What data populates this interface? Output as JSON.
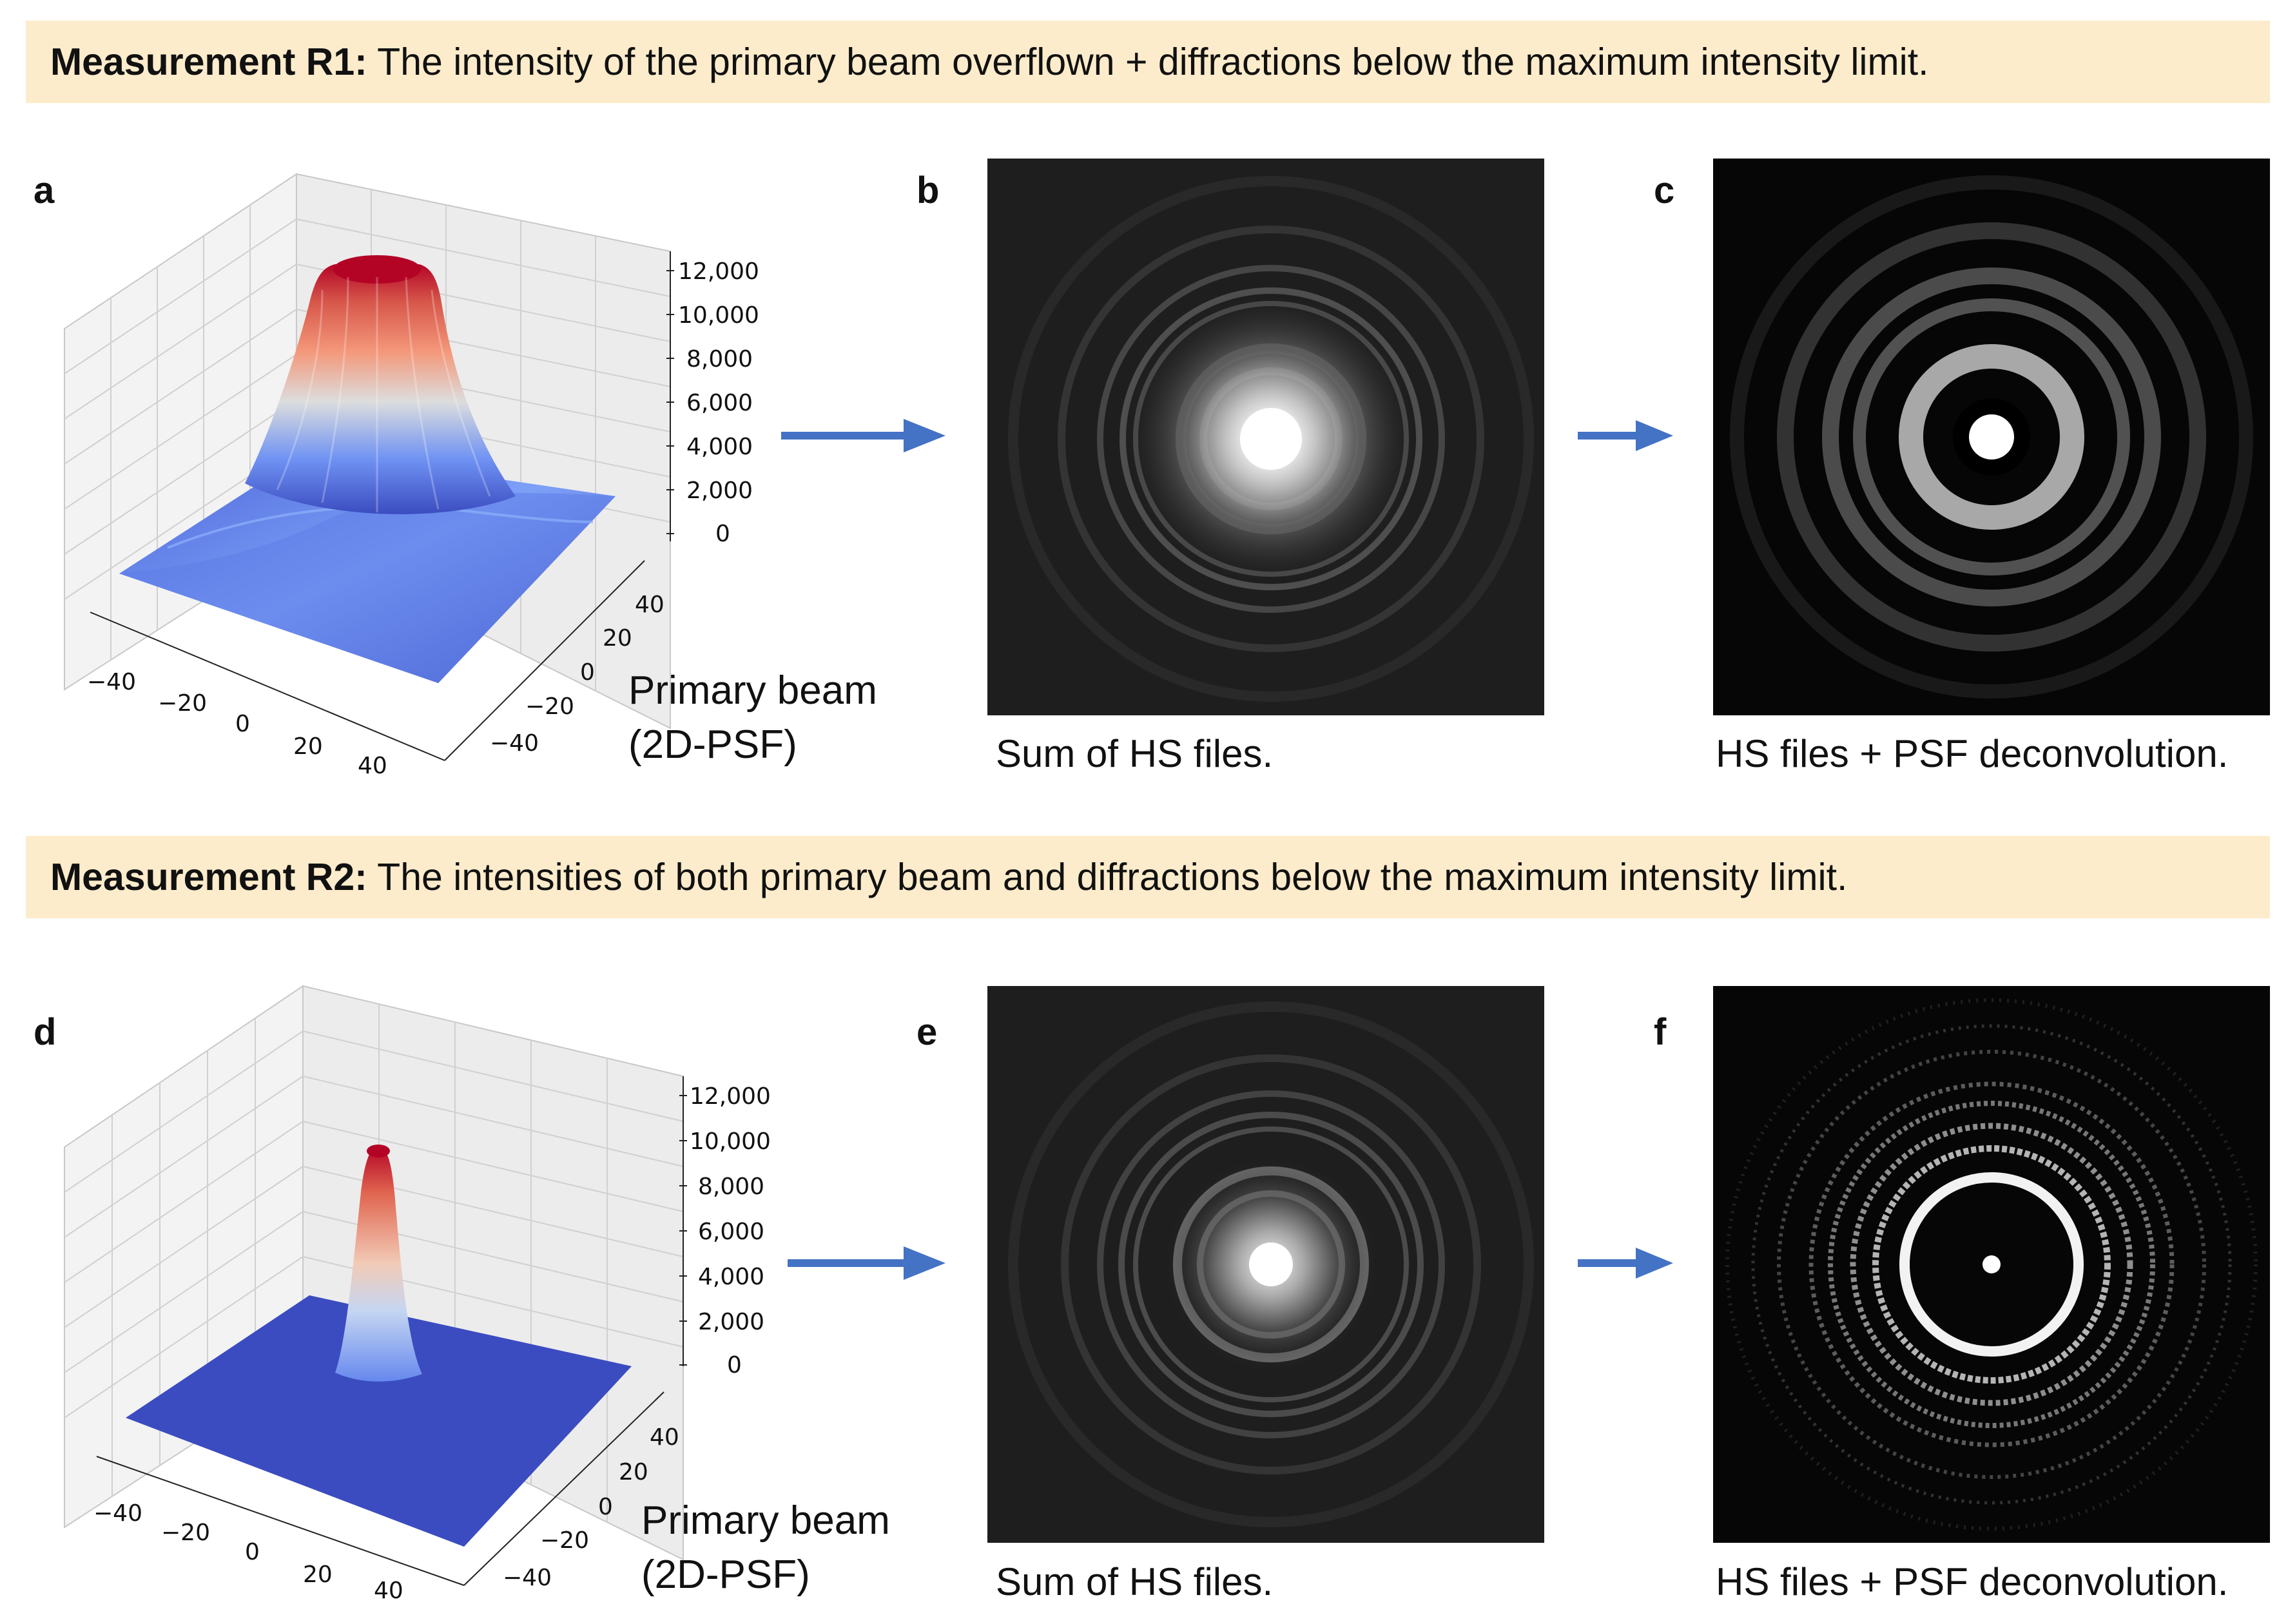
{
  "row1": {
    "banner_label": "Measurement R1:",
    "banner_text": " The intensity of the primary beam overflown + diffractions below the maximum intensity limit.",
    "letters": [
      "a",
      "b",
      "c"
    ],
    "beam_caption_line1": "Primary beam",
    "beam_caption_line2": "(2D-PSF)",
    "caption_b": "Sum of HS files.",
    "caption_c": "HS files + PSF deconvolution.",
    "z_ticks": [
      "12,000",
      "10,000",
      "8,000",
      "6,000",
      "4,000",
      "2,000",
      "0"
    ],
    "x_ticks": [
      "−40",
      "−20",
      "0",
      "20",
      "40"
    ],
    "y_ticks": [
      "40",
      "20",
      "0",
      "−20",
      "−40"
    ]
  },
  "row2": {
    "banner_label": "Measurement R2:",
    "banner_text": " The intensities of both primary beam and diffractions below the maximum intensity limit.",
    "letters": [
      "d",
      "e",
      "f"
    ],
    "beam_caption_line1": "Primary beam",
    "beam_caption_line2": "(2D-PSF)",
    "caption_e": "Sum of HS files.",
    "caption_f": "HS files + PSF deconvolution.",
    "z_ticks": [
      "12,000",
      "10,000",
      "8,000",
      "6,000",
      "4,000",
      "2,000",
      "0"
    ],
    "x_ticks": [
      "−40",
      "−20",
      "0",
      "20",
      "40"
    ],
    "y_ticks": [
      "40",
      "20",
      "0",
      "−20",
      "−40"
    ]
  },
  "colors": {
    "banner_bg": "#fdeccb",
    "arrow": "#4472c4",
    "surface_low": "#3b4cc0",
    "surface_high": "#b40426"
  },
  "icons": {
    "arrow": "right-arrow-icon"
  }
}
